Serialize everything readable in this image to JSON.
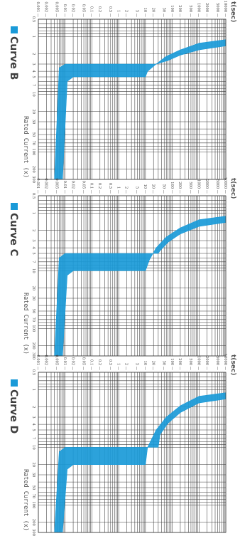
{
  "chart_data": [
    {
      "type": "area",
      "title": "Curve B",
      "xlabel": "Rated Current (x)",
      "ylabel": "t(sec)",
      "x_scale": "log",
      "y_scale": "log",
      "xlim": [
        0.5,
        300
      ],
      "ylim": [
        0.001,
        10000
      ],
      "x_ticks": [
        "0.5",
        "1",
        "2",
        "3",
        "4",
        "5",
        "7",
        "10",
        "20",
        "30",
        "50",
        "70",
        "100",
        "200",
        "300"
      ],
      "y_ticks": [
        "10000",
        "5000",
        "2000",
        "1000",
        "500",
        "200",
        "100",
        "50",
        "20",
        "10",
        "5",
        "2",
        "1",
        "0.5",
        "0.2",
        "0.1",
        "0.05",
        "0.02",
        "0.01",
        "0.005",
        "0.002",
        "0.001"
      ],
      "band_color": "#1a9ad8",
      "band_upper": [
        [
          1.13,
          10000
        ],
        [
          1.3,
          1000
        ],
        [
          1.7,
          200
        ],
        [
          2.2,
          60
        ],
        [
          3,
          25
        ],
        [
          4,
          12
        ],
        [
          5,
          10
        ],
        [
          5,
          0.02
        ],
        [
          6,
          0.012
        ],
        [
          300,
          0.008
        ]
      ],
      "band_lower": [
        [
          1.45,
          10000
        ],
        [
          1.7,
          1000
        ],
        [
          2.1,
          200
        ],
        [
          2.6,
          70
        ],
        [
          3,
          25
        ],
        [
          3,
          0.01
        ],
        [
          3.5,
          0.006
        ],
        [
          300,
          0.004
        ]
      ]
    },
    {
      "type": "area",
      "title": "Curve C",
      "xlabel": "Rated Current (x)",
      "ylabel": "t(sec)",
      "x_scale": "log",
      "y_scale": "log",
      "xlim": [
        0.5,
        300
      ],
      "ylim": [
        0.001,
        10000
      ],
      "x_ticks": [
        "0.5",
        "1",
        "2",
        "3",
        "4",
        "5",
        "7",
        "10",
        "20",
        "30",
        "50",
        "70",
        "100",
        "200",
        "300"
      ],
      "y_ticks": [
        "10000",
        "5000",
        "2000",
        "1000",
        "500",
        "200",
        "100",
        "50",
        "20",
        "10",
        "5",
        "2",
        "1",
        "0.5",
        "0.2",
        "0.1",
        "0.05",
        "0.02",
        "0.01",
        "0.005",
        "0.002",
        "0.001"
      ],
      "band_color": "#1a9ad8",
      "band_upper": [
        [
          1.13,
          10000
        ],
        [
          1.3,
          1000
        ],
        [
          1.8,
          200
        ],
        [
          2.6,
          60
        ],
        [
          4,
          25
        ],
        [
          6.5,
          14
        ],
        [
          10,
          10
        ],
        [
          10,
          0.02
        ],
        [
          12,
          0.012
        ],
        [
          300,
          0.008
        ]
      ],
      "band_lower": [
        [
          1.45,
          10000
        ],
        [
          1.7,
          1000
        ],
        [
          2.3,
          200
        ],
        [
          3.2,
          70
        ],
        [
          4.5,
          35
        ],
        [
          5,
          30
        ],
        [
          5,
          0.01
        ],
        [
          6,
          0.006
        ],
        [
          300,
          0.004
        ]
      ]
    },
    {
      "type": "area",
      "title": "Curve D",
      "xlabel": "Rated Current (x)",
      "ylabel": "t(sec)",
      "x_scale": "log",
      "y_scale": "log",
      "xlim": [
        0.5,
        300
      ],
      "ylim": [
        0.001,
        10000
      ],
      "x_ticks": [
        "0.5",
        "1",
        "2",
        "3",
        "4",
        "5",
        "7",
        "10",
        "20",
        "30",
        "50",
        "70",
        "100",
        "200",
        "300"
      ],
      "y_ticks": [
        "10000",
        "5000",
        "2000",
        "1000",
        "500",
        "200",
        "100",
        "50",
        "20",
        "10",
        "5",
        "2",
        "1",
        "0.5",
        "0.2",
        "0.1",
        "0.05",
        "0.02",
        "0.01",
        "0.005",
        "0.002",
        "0.001"
      ],
      "band_color": "#1a9ad8",
      "band_upper": [
        [
          1.13,
          10000
        ],
        [
          1.3,
          1000
        ],
        [
          1.9,
          200
        ],
        [
          3,
          60
        ],
        [
          5,
          25
        ],
        [
          10,
          12
        ],
        [
          20,
          10
        ],
        [
          20,
          0.02
        ],
        [
          24,
          0.012
        ],
        [
          300,
          0.008
        ]
      ],
      "band_lower": [
        [
          1.45,
          10000
        ],
        [
          1.7,
          1000
        ],
        [
          2.5,
          200
        ],
        [
          3.8,
          70
        ],
        [
          6,
          35
        ],
        [
          10,
          30
        ],
        [
          10,
          0.01
        ],
        [
          12,
          0.006
        ],
        [
          300,
          0.004
        ]
      ]
    }
  ]
}
